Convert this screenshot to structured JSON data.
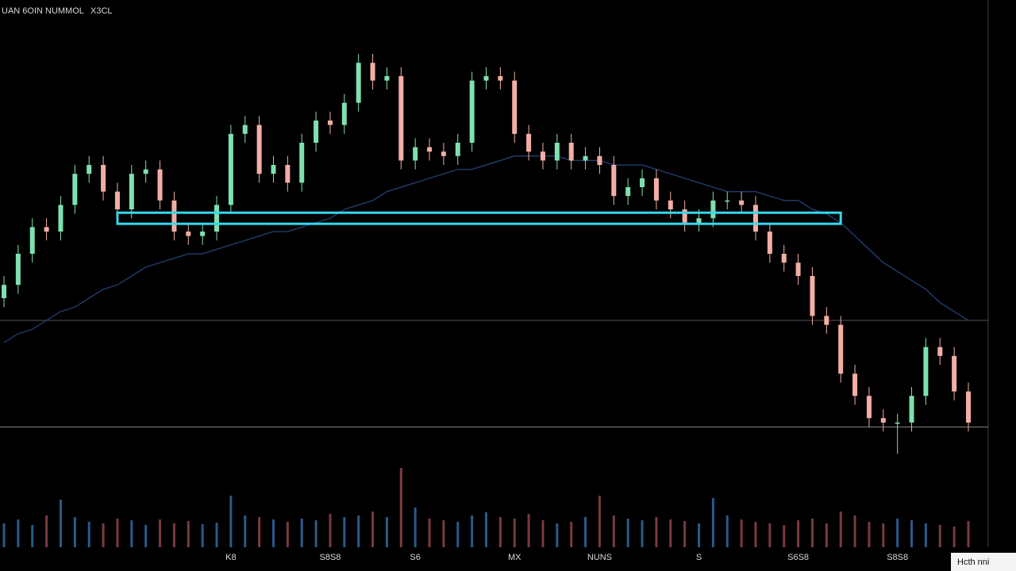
{
  "chart_data": {
    "type": "candlestick",
    "title": "UAN 6OIN NUMMOL",
    "symbol": "X3CL",
    "badge": "Hcth nni",
    "categories": [
      null,
      null,
      null,
      null,
      null,
      null,
      null,
      null,
      null,
      null,
      null,
      null,
      null,
      null,
      null,
      null,
      "K8",
      null,
      null,
      null,
      null,
      null,
      null,
      "S8S8",
      null,
      null,
      null,
      null,
      null,
      "S6",
      null,
      null,
      null,
      null,
      null,
      null,
      "MX",
      null,
      null,
      null,
      null,
      null,
      "NUNS",
      null,
      null,
      null,
      null,
      null,
      null,
      "S",
      null,
      null,
      null,
      null,
      null,
      null,
      "S6S8",
      null,
      null,
      null,
      null,
      null,
      null,
      "S8S8",
      null,
      null,
      null,
      null,
      null
    ],
    "open": [
      40,
      43,
      50,
      56,
      55,
      61,
      68,
      70,
      64,
      60,
      68,
      69,
      62,
      55,
      54,
      55,
      61,
      77,
      79,
      68,
      70,
      66,
      75,
      80,
      79,
      84,
      93,
      89,
      90,
      71,
      74,
      73,
      72,
      75,
      89,
      90,
      89,
      77,
      73,
      71,
      75,
      71,
      72,
      70,
      63,
      65,
      67,
      62,
      60,
      57,
      58,
      62,
      62,
      61,
      55,
      50,
      48,
      45,
      36,
      34,
      23,
      18,
      13,
      12,
      12,
      18,
      29,
      27,
      19
    ],
    "high": [
      45,
      52,
      58,
      58,
      63,
      70,
      72,
      72,
      66,
      70,
      71,
      71,
      64,
      57,
      57,
      63,
      79,
      81,
      81,
      72,
      72,
      77,
      82,
      82,
      86,
      95,
      95,
      92,
      92,
      76,
      76,
      75,
      77,
      91,
      92,
      92,
      91,
      79,
      75,
      77,
      77,
      74,
      74,
      72,
      67,
      69,
      69,
      64,
      62,
      60,
      64,
      64,
      64,
      63,
      57,
      52,
      50,
      47,
      38,
      36,
      25,
      20,
      15,
      14,
      20,
      31,
      31,
      29,
      21
    ],
    "low": [
      38,
      41,
      48,
      53,
      53,
      59,
      66,
      62,
      58,
      58,
      66,
      60,
      53,
      52,
      52,
      53,
      59,
      75,
      66,
      66,
      64,
      64,
      73,
      77,
      77,
      82,
      87,
      87,
      69,
      69,
      71,
      70,
      70,
      73,
      87,
      87,
      75,
      71,
      69,
      69,
      69,
      69,
      68,
      61,
      61,
      63,
      60,
      58,
      55,
      55,
      56,
      60,
      59,
      53,
      48,
      46,
      43,
      34,
      32,
      21,
      16,
      11,
      10,
      5,
      10,
      16,
      25,
      17,
      10
    ],
    "close": [
      43,
      50,
      56,
      55,
      61,
      68,
      70,
      64,
      60,
      68,
      69,
      62,
      55,
      54,
      55,
      61,
      77,
      79,
      68,
      70,
      66,
      75,
      80,
      79,
      84,
      93,
      89,
      90,
      71,
      74,
      73,
      72,
      75,
      89,
      90,
      89,
      77,
      73,
      71,
      75,
      71,
      72,
      70,
      63,
      65,
      67,
      62,
      60,
      57,
      58,
      62,
      62,
      61,
      55,
      50,
      48,
      45,
      36,
      34,
      23,
      18,
      13,
      12,
      12,
      18,
      29,
      27,
      19,
      12
    ],
    "ma": [
      30,
      32,
      33,
      35,
      37,
      38,
      40,
      42,
      43,
      45,
      47,
      48,
      49,
      50,
      50,
      51,
      52,
      53,
      54,
      55,
      55,
      56,
      57,
      58,
      60,
      61,
      62,
      64,
      65,
      66,
      67,
      68,
      69,
      69,
      70,
      71,
      72,
      72,
      72,
      72,
      71,
      71,
      71,
      70,
      70,
      70,
      69,
      68,
      67,
      66,
      65,
      64,
      64,
      64,
      63,
      62,
      62,
      60,
      59,
      57,
      54,
      51,
      48,
      46,
      44,
      42,
      39,
      37,
      35
    ],
    "volume": [
      30,
      35,
      28,
      40,
      60,
      38,
      32,
      30,
      36,
      34,
      28,
      35,
      30,
      33,
      29,
      31,
      65,
      40,
      38,
      35,
      32,
      36,
      34,
      42,
      38,
      40,
      45,
      38,
      100,
      50,
      36,
      34,
      32,
      40,
      44,
      38,
      36,
      42,
      34,
      30,
      32,
      38,
      65,
      40,
      36,
      34,
      38,
      35,
      33,
      30,
      62,
      40,
      35,
      32,
      30,
      28,
      34,
      36,
      30,
      45,
      40,
      32,
      30,
      36,
      34,
      30,
      28,
      26,
      33
    ],
    "ylim": [
      0,
      100
    ],
    "vlim": [
      0,
      100
    ],
    "highlight": {
      "value": 58,
      "start": 8,
      "end": 59,
      "color": "#35d8ec"
    },
    "hlines": [
      35,
      11
    ],
    "up_color": "#7fe0b0",
    "down_color": "#f2aea6",
    "ma_color": "#1f3a66"
  }
}
